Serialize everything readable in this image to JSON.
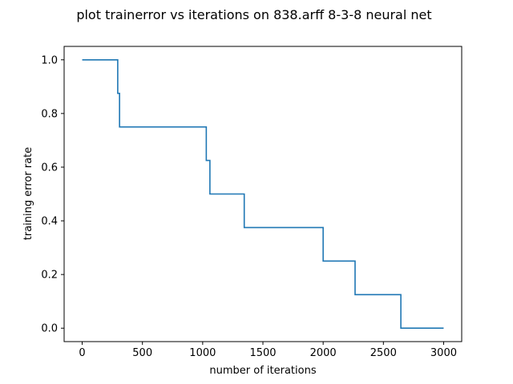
{
  "figure": {
    "title": "plot trainerror vs iterations on 838.arff 8-3-8 neural net",
    "background": "#ffffff"
  },
  "chart_data": {
    "type": "line",
    "title": "plot trainerror vs iterations on 838.arff 8-3-8 neural net",
    "xlabel": "number of iterations",
    "ylabel": "training error rate",
    "xlim": [
      -150,
      3150
    ],
    "ylim": [
      -0.05,
      1.05
    ],
    "xticks": [
      0,
      500,
      1000,
      1500,
      2000,
      2500,
      3000
    ],
    "yticks": [
      0.0,
      0.2,
      0.4,
      0.6,
      0.8,
      1.0
    ],
    "xtick_labels": [
      "0",
      "500",
      "1000",
      "1500",
      "2000",
      "2500",
      "3000"
    ],
    "ytick_labels": [
      "0.0",
      "0.2",
      "0.4",
      "0.6",
      "0.8",
      "1.0"
    ],
    "grid": false,
    "series": [
      {
        "color": "#1f77b4",
        "x": [
          0,
          295,
          295,
          310,
          310,
          1030,
          1030,
          1060,
          1060,
          1345,
          1345,
          2000,
          2000,
          2265,
          2265,
          2645,
          2645,
          3000
        ],
        "y": [
          1.0,
          1.0,
          0.875,
          0.875,
          0.75,
          0.75,
          0.625,
          0.625,
          0.5,
          0.5,
          0.375,
          0.375,
          0.25,
          0.25,
          0.125,
          0.125,
          0.0,
          0.0
        ]
      }
    ]
  }
}
